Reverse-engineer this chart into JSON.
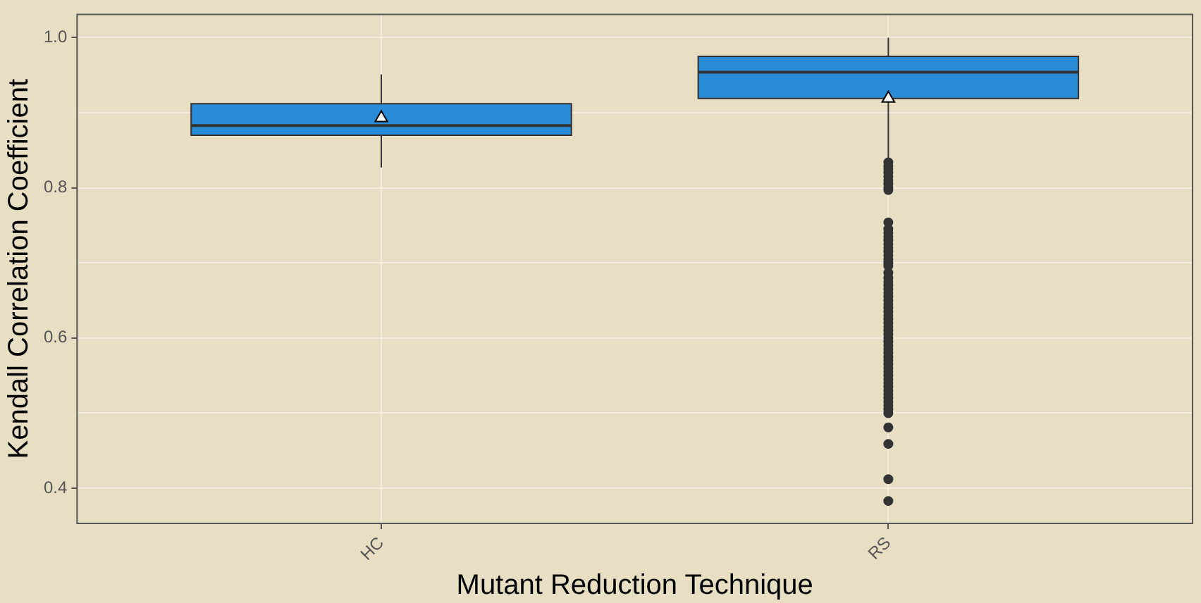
{
  "chart_data": {
    "type": "box",
    "xlabel": "Mutant Reduction Technique",
    "ylabel": "Kendall Correlation Coefficient",
    "categories": [
      "HC",
      "RS"
    ],
    "boxes": [
      {
        "low": 0.827,
        "q1": 0.87,
        "median": 0.883,
        "q3": 0.912,
        "high": 0.951,
        "mean": 0.893
      },
      {
        "low": 0.837,
        "q1": 0.919,
        "median": 0.954,
        "q3": 0.975,
        "high": 1.0,
        "mean": 0.919,
        "outliers": [
          0.834,
          0.829,
          0.825,
          0.82,
          0.815,
          0.81,
          0.805,
          0.8,
          0.797,
          0.754,
          0.745,
          0.74,
          0.735,
          0.73,
          0.725,
          0.72,
          0.715,
          0.71,
          0.705,
          0.7,
          0.696,
          0.687,
          0.68,
          0.675,
          0.67,
          0.665,
          0.66,
          0.655,
          0.65,
          0.645,
          0.64,
          0.635,
          0.63,
          0.625,
          0.62,
          0.615,
          0.61,
          0.605,
          0.6,
          0.595,
          0.59,
          0.585,
          0.58,
          0.575,
          0.57,
          0.565,
          0.56,
          0.555,
          0.55,
          0.545,
          0.54,
          0.535,
          0.53,
          0.525,
          0.52,
          0.515,
          0.51,
          0.505,
          0.5,
          0.481,
          0.459,
          0.412,
          0.383
        ]
      }
    ],
    "color": "#2a8bd6",
    "ylim": [
      0.353,
      1.031
    ],
    "yticks": [
      {
        "value": 0.4,
        "label": "0.4"
      },
      {
        "value": 0.5,
        "label": null
      },
      {
        "value": 0.6,
        "label": "0.6"
      },
      {
        "value": 0.7,
        "label": null
      },
      {
        "value": 0.8,
        "label": "0.8"
      },
      {
        "value": 0.9,
        "label": null
      },
      {
        "value": 1.0,
        "label": "1.0"
      }
    ],
    "grid": true,
    "legend": false,
    "marker": "circle"
  }
}
